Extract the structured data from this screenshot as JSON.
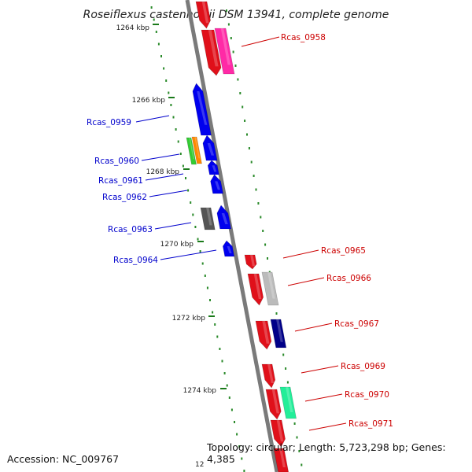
{
  "title": "Roseiflexus castenholzii DSM 13941, complete genome",
  "accession_label": "Accession: NC_009767",
  "summary_label": "Topology: circular; Length: 5,723,298 bp; Genes: 4,385",
  "bottom_tick_fragment": "12",
  "colors": {
    "left_label": "#0000cc",
    "right_label": "#cc0000",
    "backbone": "#888888",
    "tick_dots": "#1a7a1a"
  },
  "ticks": [
    {
      "label": "1264 kbp"
    },
    {
      "label": "1266 kbp"
    },
    {
      "label": "1268 kbp"
    },
    {
      "label": "1270 kbp"
    },
    {
      "label": "1272 kbp"
    },
    {
      "label": "1274 kbp"
    }
  ],
  "left_genes": [
    {
      "label": "Rcas_0959"
    },
    {
      "label": "Rcas_0960"
    },
    {
      "label": "Rcas_0961"
    },
    {
      "label": "Rcas_0962"
    },
    {
      "label": "Rcas_0963"
    },
    {
      "label": "Rcas_0964"
    }
  ],
  "right_genes": [
    {
      "label": "Rcas_0958"
    },
    {
      "label": "Rcas_0965"
    },
    {
      "label": "Rcas_0966"
    },
    {
      "label": "Rcas_0967"
    },
    {
      "label": "Rcas_0969"
    },
    {
      "label": "Rcas_0970"
    },
    {
      "label": "Rcas_0971"
    }
  ]
}
